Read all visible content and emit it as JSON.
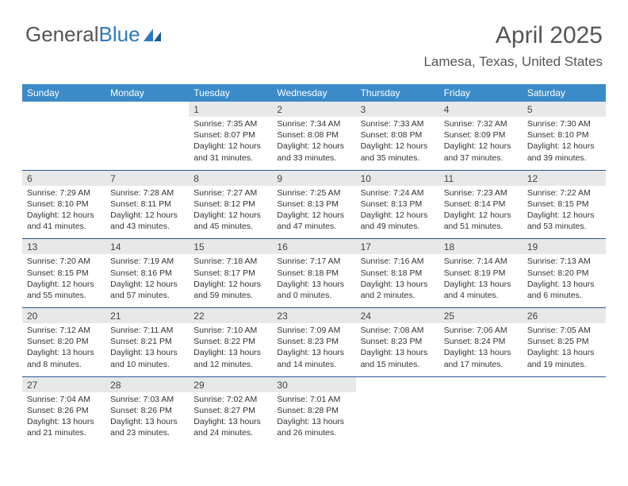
{
  "logo": {
    "text1": "General",
    "text2": "Blue"
  },
  "title": "April 2025",
  "location": "Lamesa, Texas, United States",
  "colors": {
    "header_bg": "#3b8bc9",
    "header_text": "#ffffff",
    "daynum_bg": "#e8e8e8",
    "separator": "#2b5a8a",
    "body_text": "#333333",
    "title_text": "#555555"
  },
  "days_of_week": [
    "Sunday",
    "Monday",
    "Tuesday",
    "Wednesday",
    "Thursday",
    "Friday",
    "Saturday"
  ],
  "weeks": [
    [
      null,
      null,
      {
        "n": "1",
        "sr": "Sunrise: 7:35 AM",
        "ss": "Sunset: 8:07 PM",
        "d1": "Daylight: 12 hours",
        "d2": "and 31 minutes."
      },
      {
        "n": "2",
        "sr": "Sunrise: 7:34 AM",
        "ss": "Sunset: 8:08 PM",
        "d1": "Daylight: 12 hours",
        "d2": "and 33 minutes."
      },
      {
        "n": "3",
        "sr": "Sunrise: 7:33 AM",
        "ss": "Sunset: 8:08 PM",
        "d1": "Daylight: 12 hours",
        "d2": "and 35 minutes."
      },
      {
        "n": "4",
        "sr": "Sunrise: 7:32 AM",
        "ss": "Sunset: 8:09 PM",
        "d1": "Daylight: 12 hours",
        "d2": "and 37 minutes."
      },
      {
        "n": "5",
        "sr": "Sunrise: 7:30 AM",
        "ss": "Sunset: 8:10 PM",
        "d1": "Daylight: 12 hours",
        "d2": "and 39 minutes."
      }
    ],
    [
      {
        "n": "6",
        "sr": "Sunrise: 7:29 AM",
        "ss": "Sunset: 8:10 PM",
        "d1": "Daylight: 12 hours",
        "d2": "and 41 minutes."
      },
      {
        "n": "7",
        "sr": "Sunrise: 7:28 AM",
        "ss": "Sunset: 8:11 PM",
        "d1": "Daylight: 12 hours",
        "d2": "and 43 minutes."
      },
      {
        "n": "8",
        "sr": "Sunrise: 7:27 AM",
        "ss": "Sunset: 8:12 PM",
        "d1": "Daylight: 12 hours",
        "d2": "and 45 minutes."
      },
      {
        "n": "9",
        "sr": "Sunrise: 7:25 AM",
        "ss": "Sunset: 8:13 PM",
        "d1": "Daylight: 12 hours",
        "d2": "and 47 minutes."
      },
      {
        "n": "10",
        "sr": "Sunrise: 7:24 AM",
        "ss": "Sunset: 8:13 PM",
        "d1": "Daylight: 12 hours",
        "d2": "and 49 minutes."
      },
      {
        "n": "11",
        "sr": "Sunrise: 7:23 AM",
        "ss": "Sunset: 8:14 PM",
        "d1": "Daylight: 12 hours",
        "d2": "and 51 minutes."
      },
      {
        "n": "12",
        "sr": "Sunrise: 7:22 AM",
        "ss": "Sunset: 8:15 PM",
        "d1": "Daylight: 12 hours",
        "d2": "and 53 minutes."
      }
    ],
    [
      {
        "n": "13",
        "sr": "Sunrise: 7:20 AM",
        "ss": "Sunset: 8:15 PM",
        "d1": "Daylight: 12 hours",
        "d2": "and 55 minutes."
      },
      {
        "n": "14",
        "sr": "Sunrise: 7:19 AM",
        "ss": "Sunset: 8:16 PM",
        "d1": "Daylight: 12 hours",
        "d2": "and 57 minutes."
      },
      {
        "n": "15",
        "sr": "Sunrise: 7:18 AM",
        "ss": "Sunset: 8:17 PM",
        "d1": "Daylight: 12 hours",
        "d2": "and 59 minutes."
      },
      {
        "n": "16",
        "sr": "Sunrise: 7:17 AM",
        "ss": "Sunset: 8:18 PM",
        "d1": "Daylight: 13 hours",
        "d2": "and 0 minutes."
      },
      {
        "n": "17",
        "sr": "Sunrise: 7:16 AM",
        "ss": "Sunset: 8:18 PM",
        "d1": "Daylight: 13 hours",
        "d2": "and 2 minutes."
      },
      {
        "n": "18",
        "sr": "Sunrise: 7:14 AM",
        "ss": "Sunset: 8:19 PM",
        "d1": "Daylight: 13 hours",
        "d2": "and 4 minutes."
      },
      {
        "n": "19",
        "sr": "Sunrise: 7:13 AM",
        "ss": "Sunset: 8:20 PM",
        "d1": "Daylight: 13 hours",
        "d2": "and 6 minutes."
      }
    ],
    [
      {
        "n": "20",
        "sr": "Sunrise: 7:12 AM",
        "ss": "Sunset: 8:20 PM",
        "d1": "Daylight: 13 hours",
        "d2": "and 8 minutes."
      },
      {
        "n": "21",
        "sr": "Sunrise: 7:11 AM",
        "ss": "Sunset: 8:21 PM",
        "d1": "Daylight: 13 hours",
        "d2": "and 10 minutes."
      },
      {
        "n": "22",
        "sr": "Sunrise: 7:10 AM",
        "ss": "Sunset: 8:22 PM",
        "d1": "Daylight: 13 hours",
        "d2": "and 12 minutes."
      },
      {
        "n": "23",
        "sr": "Sunrise: 7:09 AM",
        "ss": "Sunset: 8:23 PM",
        "d1": "Daylight: 13 hours",
        "d2": "and 14 minutes."
      },
      {
        "n": "24",
        "sr": "Sunrise: 7:08 AM",
        "ss": "Sunset: 8:23 PM",
        "d1": "Daylight: 13 hours",
        "d2": "and 15 minutes."
      },
      {
        "n": "25",
        "sr": "Sunrise: 7:06 AM",
        "ss": "Sunset: 8:24 PM",
        "d1": "Daylight: 13 hours",
        "d2": "and 17 minutes."
      },
      {
        "n": "26",
        "sr": "Sunrise: 7:05 AM",
        "ss": "Sunset: 8:25 PM",
        "d1": "Daylight: 13 hours",
        "d2": "and 19 minutes."
      }
    ],
    [
      {
        "n": "27",
        "sr": "Sunrise: 7:04 AM",
        "ss": "Sunset: 8:26 PM",
        "d1": "Daylight: 13 hours",
        "d2": "and 21 minutes."
      },
      {
        "n": "28",
        "sr": "Sunrise: 7:03 AM",
        "ss": "Sunset: 8:26 PM",
        "d1": "Daylight: 13 hours",
        "d2": "and 23 minutes."
      },
      {
        "n": "29",
        "sr": "Sunrise: 7:02 AM",
        "ss": "Sunset: 8:27 PM",
        "d1": "Daylight: 13 hours",
        "d2": "and 24 minutes."
      },
      {
        "n": "30",
        "sr": "Sunrise: 7:01 AM",
        "ss": "Sunset: 8:28 PM",
        "d1": "Daylight: 13 hours",
        "d2": "and 26 minutes."
      },
      null,
      null,
      null
    ]
  ]
}
